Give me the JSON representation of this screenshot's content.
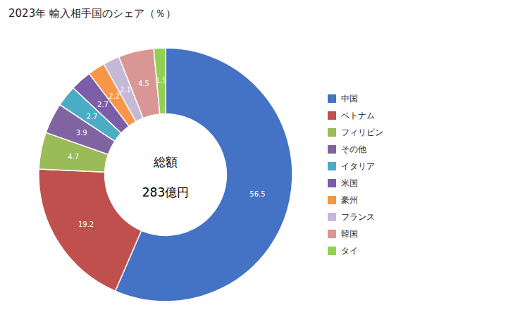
{
  "chart_data": {
    "type": "donut",
    "title": "2023年 輸入相手国のシェア（％）",
    "annotations": [
      "総額",
      "283億円"
    ],
    "categories": [
      "中国",
      "ベトナム",
      "フィリピン",
      "その他",
      "イタリア",
      "米国",
      "豪州",
      "フランス",
      "韓国",
      "タイ"
    ],
    "values": [
      56.5,
      19.2,
      4.7,
      3.9,
      2.7,
      2.7,
      2.2,
      2.1,
      4.5,
      1.5
    ],
    "colors": [
      "#4472C4",
      "#C0504D",
      "#9BBB59",
      "#8064A2",
      "#4BACC6",
      "#7B5EA7",
      "#F79646",
      "#C6B8D7",
      "#D99694",
      "#92D050"
    ],
    "data_labels": true,
    "legend": "right"
  }
}
